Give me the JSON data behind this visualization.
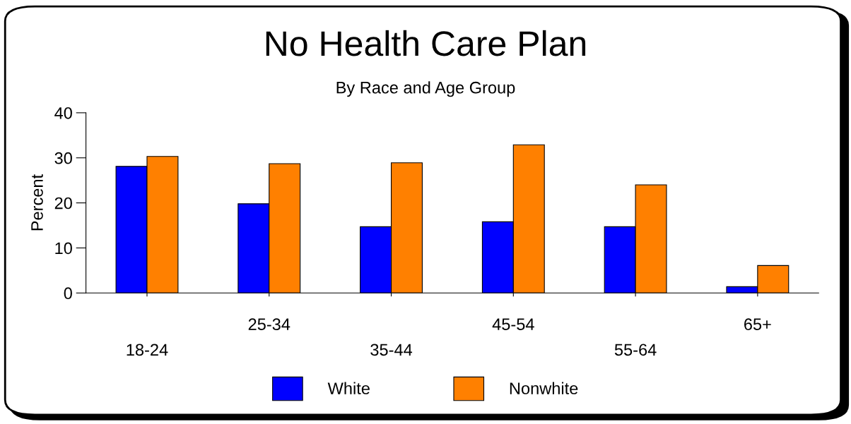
{
  "chart_data": {
    "type": "bar",
    "title": "No Health Care Plan",
    "subtitle": "By Race and Age Group",
    "ylabel": "Percent",
    "categories": [
      "18-24",
      "25-34",
      "35-44",
      "45-54",
      "55-64",
      "65+"
    ],
    "series": [
      {
        "name": "White",
        "color": "#0000ff",
        "values": [
          28.1,
          19.8,
          14.7,
          15.8,
          14.7,
          1.4
        ]
      },
      {
        "name": "Nonwhite",
        "color": "#ff8000",
        "values": [
          30.3,
          28.7,
          28.9,
          32.9,
          24.0,
          6.1
        ]
      }
    ],
    "ylim": [
      0,
      40
    ],
    "yticks": [
      0,
      10,
      20,
      30,
      40
    ],
    "grid": false,
    "legend": "bottom"
  }
}
